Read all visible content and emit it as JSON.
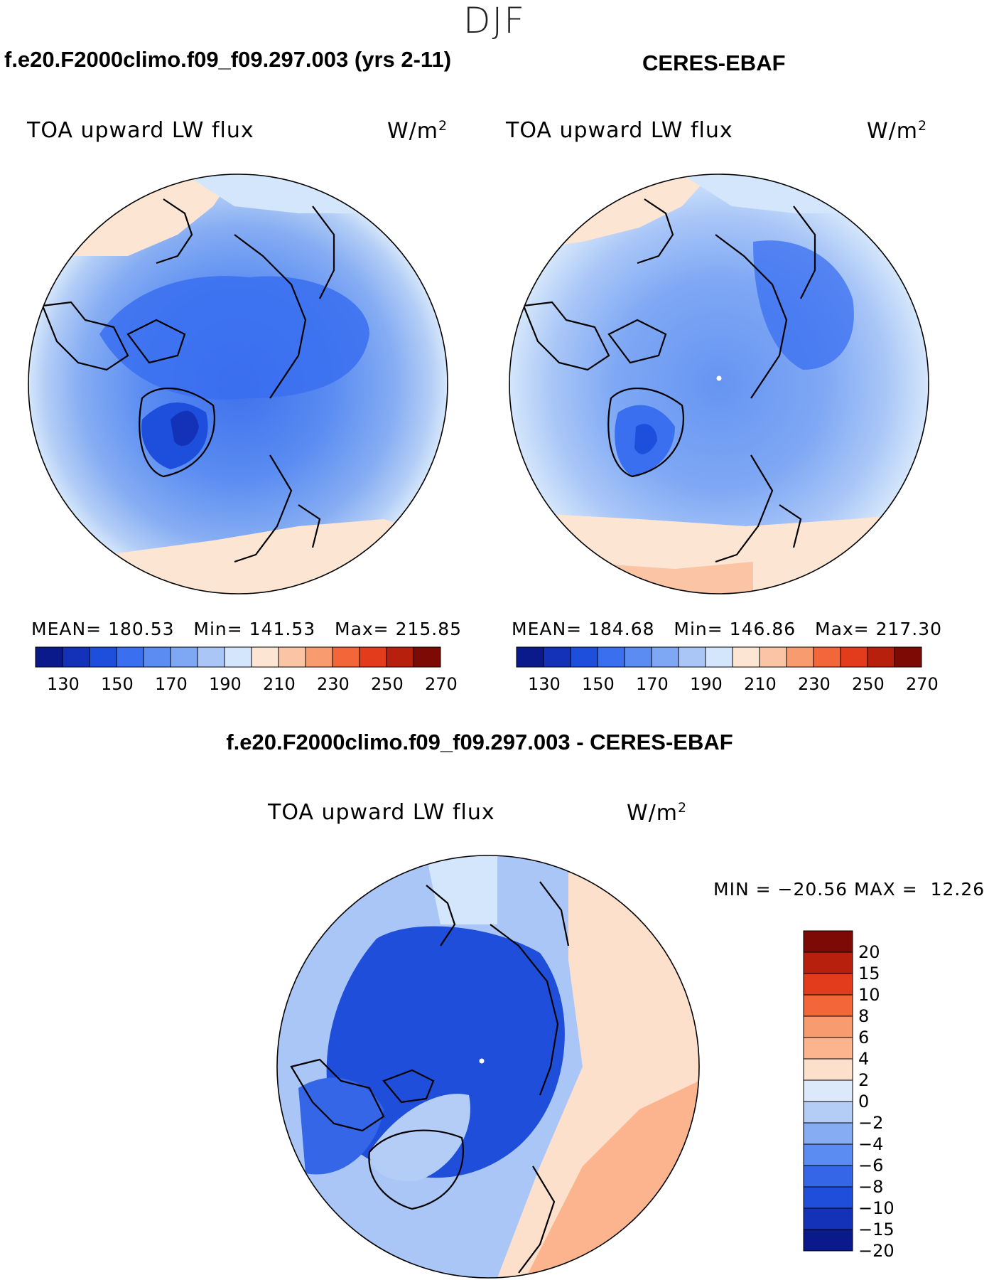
{
  "season": "DJF",
  "panels": {
    "model": {
      "header": "f.e20.F2000climo.f09_f09.297.003 (yrs 2-11)",
      "variable": "TOA upward LW flux",
      "units": "W/m",
      "units_exp": "2",
      "mean_label": "MEAN=",
      "mean_value": "180.53",
      "min_label": "Min=",
      "min_value": "141.53",
      "max_label": "Max=",
      "max_value": "215.85"
    },
    "obs": {
      "header": "CERES-EBAF",
      "variable": "TOA upward LW flux",
      "units": "W/m",
      "units_exp": "2",
      "mean_label": "MEAN=",
      "mean_value": "184.68",
      "min_label": "Min=",
      "min_value": "146.86",
      "max_label": "Max=",
      "max_value": "217.30"
    },
    "diff": {
      "header": "f.e20.F2000climo.f09_f09.297.003 - CERES-EBAF",
      "variable": "TOA upward LW flux",
      "units": "W/m",
      "units_exp": "2",
      "min_label": "MIN =",
      "min_value": "−20.56",
      "max_label": "MAX =",
      "max_value": "12.26"
    }
  },
  "colorbar_abs": {
    "ticks": [
      "130",
      "150",
      "170",
      "190",
      "210",
      "230",
      "250",
      "270"
    ],
    "colors": [
      "#0b1a8a",
      "#1432b8",
      "#1e4fdc",
      "#3a6ff0",
      "#5a8cf2",
      "#7fa8f4",
      "#a9c6f7",
      "#d4e6fb",
      "#fde5d4",
      "#fbc4a4",
      "#f89b6e",
      "#f2663a",
      "#e33c1c",
      "#b8200e",
      "#7d0a05"
    ]
  },
  "colorbar_diff": {
    "ticks": [
      "20",
      "15",
      "10",
      "8",
      "6",
      "4",
      "2",
      "0",
      "−2",
      "−4",
      "−6",
      "−8",
      "−10",
      "−15",
      "−20"
    ],
    "colors": [
      "#7d0a05",
      "#b8200e",
      "#e33c1c",
      "#f2663a",
      "#f89b6e",
      "#fbb48e",
      "#fde0cc",
      "#dce9fb",
      "#b3cdf6",
      "#86adf3",
      "#5a8cf2",
      "#3566e8",
      "#1f4edb",
      "#1432b8",
      "#0b1a8a"
    ]
  },
  "map_data": {
    "projection": "north polar stereographic",
    "model_field": "TOA upward LW flux (W/m2), range 141.53–215.85",
    "obs_field": "TOA upward LW flux (W/m2), range 146.86–217.30",
    "diff_field": "model minus observations (W/m2), range −20.56–12.26"
  }
}
